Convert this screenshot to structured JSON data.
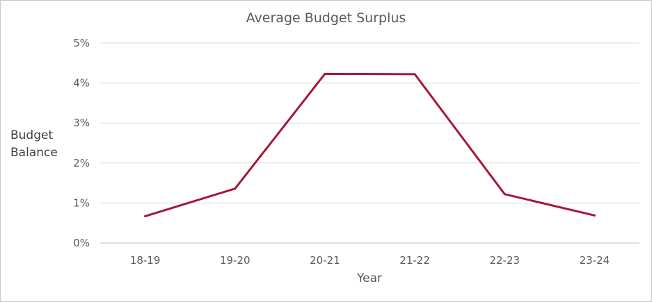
{
  "chart_data": {
    "type": "line",
    "title": "Average Budget Surplus",
    "xlabel": "Year",
    "ylabel_lines": [
      "Budget",
      "Balance"
    ],
    "categories": [
      "18-19",
      "19-20",
      "20-21",
      "21-22",
      "22-23",
      "23-24"
    ],
    "series": [
      {
        "values": [
          0.67,
          1.36,
          4.23,
          4.22,
          1.22,
          0.69
        ],
        "color": "#a6163a"
      }
    ],
    "ylim": [
      0,
      5
    ],
    "yticks": [
      0,
      1,
      2,
      3,
      4,
      5
    ],
    "ytick_labels": [
      "0%",
      "1%",
      "2%",
      "3%",
      "4%",
      "5%"
    ],
    "grid": true,
    "legend": "none"
  }
}
